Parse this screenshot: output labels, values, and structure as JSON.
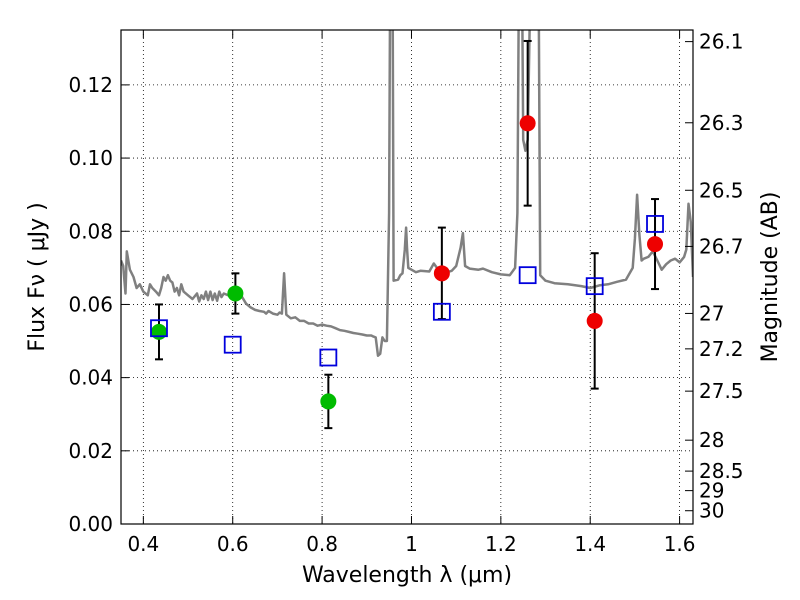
{
  "chart_data": {
    "type": "scatter",
    "xlabel": "Wavelength  λ (μm)",
    "ylabel": "Flux  Fν  ( μJy )",
    "ylabel_right": "Magnitude (AB)",
    "xlim": [
      0.35,
      1.63
    ],
    "ylim": [
      0.0,
      0.135
    ],
    "x_ticks": [
      0.4,
      0.6,
      0.8,
      1.0,
      1.2,
      1.4,
      1.6
    ],
    "x_tick_labels": [
      "0.4",
      "0.6",
      "0.8",
      "1",
      "1.2",
      "1.4",
      "1.6"
    ],
    "y_ticks": [
      0.0,
      0.02,
      0.04,
      0.06,
      0.08,
      0.1,
      0.12
    ],
    "y_tick_labels": [
      "0.00",
      "0.02",
      "0.04",
      "0.06",
      "0.08",
      "0.10",
      "0.12"
    ],
    "mag_ticks": [
      26.1,
      26.3,
      26.5,
      26.7,
      27,
      27.2,
      27.5,
      28,
      28.5,
      29,
      30
    ],
    "mag_tick_labels": [
      "26.1",
      "26.3",
      "26.5",
      "26.7",
      "27",
      "27.2",
      "27.5",
      "28",
      "28.5",
      "29",
      "30"
    ],
    "grid": true,
    "colors": {
      "green": "#00bb00",
      "red": "#ee0000",
      "model_points": "#0000dd",
      "model_line": "#808080"
    },
    "series": [
      {
        "marker": "circle",
        "color": "#00bb00",
        "points": [
          {
            "x": 0.435,
            "y": 0.0525,
            "err": 0.0075
          },
          {
            "x": 0.606,
            "y": 0.063,
            "err": 0.0055
          },
          {
            "x": 0.814,
            "y": 0.0335,
            "err": 0.0073
          }
        ]
      },
      {
        "marker": "circle",
        "color": "#ee0000",
        "points": [
          {
            "x": 1.068,
            "y": 0.0685,
            "err": 0.0125
          },
          {
            "x": 1.26,
            "y": 0.1095,
            "err": 0.0225
          },
          {
            "x": 1.41,
            "y": 0.0555,
            "err": 0.0185
          },
          {
            "x": 1.545,
            "y": 0.0765,
            "err": 0.0123
          }
        ]
      },
      {
        "marker": "open-square",
        "color": "#0000dd",
        "points": [
          {
            "x": 0.435,
            "y": 0.0535
          },
          {
            "x": 0.6,
            "y": 0.049
          },
          {
            "x": 0.814,
            "y": 0.0455
          },
          {
            "x": 1.068,
            "y": 0.058
          },
          {
            "x": 1.26,
            "y": 0.068
          },
          {
            "x": 1.41,
            "y": 0.065
          },
          {
            "x": 1.545,
            "y": 0.082
          }
        ]
      },
      {
        "marker": "line",
        "color": "#808080",
        "points": [
          [
            0.35,
            0.072
          ],
          [
            0.355,
            0.0705
          ],
          [
            0.36,
            0.063
          ],
          [
            0.363,
            0.0745
          ],
          [
            0.37,
            0.0695
          ],
          [
            0.378,
            0.0675
          ],
          [
            0.385,
            0.0645
          ],
          [
            0.392,
            0.0655
          ],
          [
            0.4,
            0.0635
          ],
          [
            0.41,
            0.0625
          ],
          [
            0.415,
            0.0655
          ],
          [
            0.42,
            0.0645
          ],
          [
            0.428,
            0.0635
          ],
          [
            0.435,
            0.0625
          ],
          [
            0.44,
            0.0645
          ],
          [
            0.445,
            0.0675
          ],
          [
            0.45,
            0.0665
          ],
          [
            0.455,
            0.068
          ],
          [
            0.46,
            0.0665
          ],
          [
            0.465,
            0.066
          ],
          [
            0.47,
            0.0635
          ],
          [
            0.475,
            0.0645
          ],
          [
            0.48,
            0.0625
          ],
          [
            0.485,
            0.0655
          ],
          [
            0.49,
            0.0635
          ],
          [
            0.5,
            0.0625
          ],
          [
            0.51,
            0.0615
          ],
          [
            0.52,
            0.063
          ],
          [
            0.525,
            0.0608
          ],
          [
            0.53,
            0.0625
          ],
          [
            0.535,
            0.0615
          ],
          [
            0.54,
            0.0635
          ],
          [
            0.545,
            0.0612
          ],
          [
            0.55,
            0.0635
          ],
          [
            0.555,
            0.0612
          ],
          [
            0.56,
            0.063
          ],
          [
            0.565,
            0.061
          ],
          [
            0.57,
            0.0635
          ],
          [
            0.575,
            0.062
          ],
          [
            0.58,
            0.063
          ],
          [
            0.59,
            0.0625
          ],
          [
            0.6,
            0.062
          ],
          [
            0.61,
            0.0628
          ],
          [
            0.62,
            0.0622
          ],
          [
            0.63,
            0.0602
          ],
          [
            0.64,
            0.0592
          ],
          [
            0.65,
            0.0585
          ],
          [
            0.66,
            0.0582
          ],
          [
            0.67,
            0.058
          ],
          [
            0.675,
            0.0575
          ],
          [
            0.68,
            0.0582
          ],
          [
            0.69,
            0.0575
          ],
          [
            0.7,
            0.0572
          ],
          [
            0.705,
            0.0578
          ],
          [
            0.71,
            0.0575
          ],
          [
            0.715,
            0.0685
          ],
          [
            0.72,
            0.0572
          ],
          [
            0.73,
            0.0562
          ],
          [
            0.74,
            0.0565
          ],
          [
            0.75,
            0.0555
          ],
          [
            0.76,
            0.0555
          ],
          [
            0.77,
            0.0548
          ],
          [
            0.78,
            0.0548
          ],
          [
            0.79,
            0.0542
          ],
          [
            0.8,
            0.0545
          ],
          [
            0.81,
            0.0542
          ],
          [
            0.82,
            0.054
          ],
          [
            0.83,
            0.0535
          ],
          [
            0.84,
            0.053
          ],
          [
            0.85,
            0.0528
          ],
          [
            0.86,
            0.0525
          ],
          [
            0.87,
            0.0522
          ],
          [
            0.88,
            0.052
          ],
          [
            0.89,
            0.0518
          ],
          [
            0.9,
            0.0515
          ],
          [
            0.91,
            0.0515
          ],
          [
            0.915,
            0.0512
          ],
          [
            0.92,
            0.051
          ],
          [
            0.925,
            0.046
          ],
          [
            0.93,
            0.0465
          ],
          [
            0.935,
            0.051
          ],
          [
            0.94,
            0.05
          ],
          [
            0.945,
            0.05
          ],
          [
            0.95,
            0.085
          ],
          [
            0.952,
            0.14
          ],
          [
            0.958,
            0.14
          ],
          [
            0.96,
            0.0665
          ],
          [
            0.97,
            0.0668
          ],
          [
            0.975,
            0.068
          ],
          [
            0.98,
            0.0685
          ],
          [
            0.985,
            0.075
          ],
          [
            0.988,
            0.081
          ],
          [
            0.99,
            0.0755
          ],
          [
            0.993,
            0.07
          ],
          [
            1.0,
            0.0695
          ],
          [
            1.01,
            0.0688
          ],
          [
            1.02,
            0.0692
          ],
          [
            1.04,
            0.069
          ],
          [
            1.05,
            0.0712
          ],
          [
            1.06,
            0.0695
          ],
          [
            1.08,
            0.0688
          ],
          [
            1.09,
            0.0692
          ],
          [
            1.1,
            0.0705
          ],
          [
            1.11,
            0.0755
          ],
          [
            1.115,
            0.0795
          ],
          [
            1.12,
            0.0705
          ],
          [
            1.13,
            0.0698
          ],
          [
            1.15,
            0.0695
          ],
          [
            1.16,
            0.0698
          ],
          [
            1.18,
            0.0688
          ],
          [
            1.2,
            0.0682
          ],
          [
            1.22,
            0.068
          ],
          [
            1.232,
            0.07
          ],
          [
            1.237,
            0.085
          ],
          [
            1.24,
            0.14
          ],
          [
            1.248,
            0.14
          ],
          [
            1.25,
            0.105
          ],
          [
            1.255,
            0.102
          ],
          [
            1.26,
            0.105
          ],
          [
            1.265,
            0.14
          ],
          [
            1.285,
            0.14
          ],
          [
            1.288,
            0.068
          ],
          [
            1.3,
            0.0665
          ],
          [
            1.32,
            0.0658
          ],
          [
            1.35,
            0.0655
          ],
          [
            1.38,
            0.065
          ],
          [
            1.4,
            0.0645
          ],
          [
            1.42,
            0.0652
          ],
          [
            1.44,
            0.0655
          ],
          [
            1.46,
            0.0662
          ],
          [
            1.48,
            0.0668
          ],
          [
            1.495,
            0.07
          ],
          [
            1.5,
            0.078
          ],
          [
            1.505,
            0.09
          ],
          [
            1.51,
            0.079
          ],
          [
            1.515,
            0.072
          ],
          [
            1.52,
            0.0725
          ],
          [
            1.53,
            0.073
          ],
          [
            1.54,
            0.0745
          ],
          [
            1.55,
            0.072
          ],
          [
            1.56,
            0.0695
          ],
          [
            1.57,
            0.071
          ],
          [
            1.58,
            0.072
          ],
          [
            1.59,
            0.0725
          ],
          [
            1.6,
            0.0715
          ],
          [
            1.61,
            0.073
          ],
          [
            1.615,
            0.075
          ],
          [
            1.62,
            0.0875
          ],
          [
            1.625,
            0.0825
          ],
          [
            1.63,
            0.0675
          ]
        ]
      }
    ]
  }
}
